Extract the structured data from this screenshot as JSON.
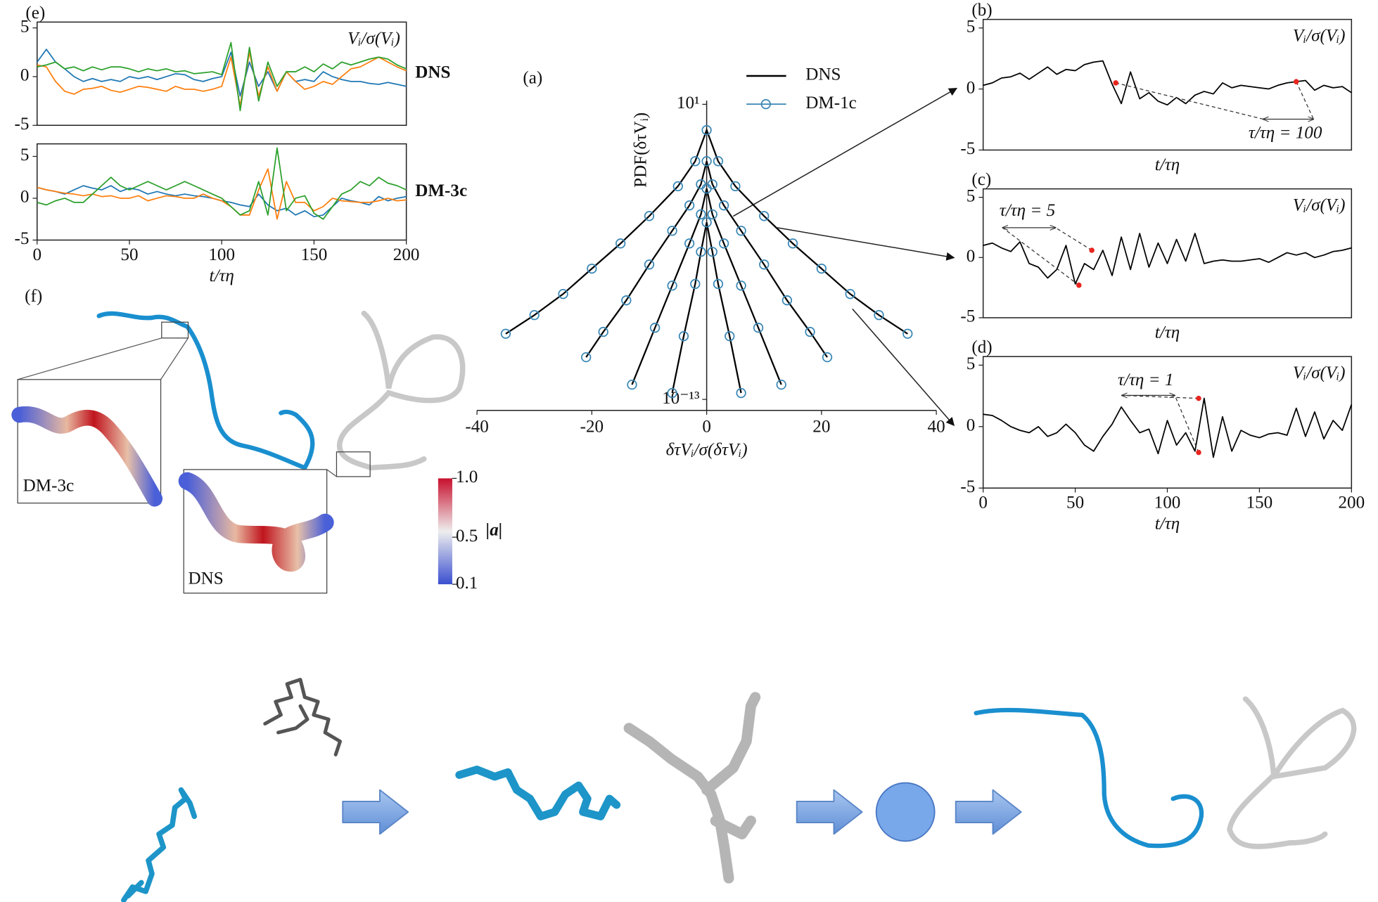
{
  "chart_data": [
    {
      "type": "line",
      "panel_label": "(e)",
      "inset_label": "Vᵢ/σ(Vᵢ)",
      "label": "DNS",
      "xlim": [
        0,
        200
      ],
      "ylim": [
        -5,
        5.6
      ],
      "yticks": [
        -5,
        0,
        5
      ],
      "x": [
        0,
        5,
        10,
        15,
        20,
        25,
        30,
        35,
        40,
        45,
        50,
        55,
        60,
        65,
        70,
        75,
        80,
        85,
        90,
        95,
        100,
        105,
        110,
        115,
        120,
        125,
        130,
        135,
        140,
        145,
        150,
        155,
        160,
        165,
        170,
        175,
        180,
        185,
        190,
        195,
        200
      ],
      "series": [
        {
          "color": "#1f77b4",
          "values": [
            1.5,
            2.8,
            1.5,
            0.8,
            0.0,
            -0.5,
            -0.2,
            -0.5,
            -0.3,
            -0.5,
            0.0,
            -0.2,
            0.0,
            -0.3,
            0.0,
            0.3,
            0.2,
            -0.3,
            -0.5,
            -0.2,
            0.0,
            2.5,
            -2.0,
            1.5,
            -1.0,
            0.5,
            -1.5,
            0.5,
            -0.5,
            -0.3,
            -0.5,
            0.5,
            0.0,
            -0.3,
            -0.5,
            -0.5,
            -0.7,
            -0.8,
            -0.6,
            -0.8,
            -1.0
          ]
        },
        {
          "color": "#ff7f0e",
          "values": [
            1.2,
            1.0,
            -0.5,
            -1.5,
            -1.8,
            -1.3,
            -1.2,
            -1.0,
            -1.4,
            -1.6,
            -1.3,
            -1.0,
            -1.1,
            -1.3,
            -1.5,
            -1.0,
            -1.3,
            -1.3,
            -1.5,
            -1.3,
            -1.0,
            2.0,
            -3.0,
            2.5,
            -2.0,
            1.0,
            -1.5,
            0.5,
            -0.5,
            -1.3,
            -1.0,
            -0.5,
            -0.8,
            0.0,
            0.8,
            1.0,
            1.5,
            2.0,
            1.5,
            1.0,
            0.6
          ]
        },
        {
          "color": "#2ca02c",
          "values": [
            1.0,
            1.2,
            1.5,
            0.8,
            1.0,
            0.6,
            1.0,
            0.7,
            1.0,
            1.0,
            0.8,
            0.5,
            0.8,
            0.6,
            0.8,
            0.5,
            0.6,
            0.3,
            0.4,
            0.5,
            0.2,
            3.5,
            -3.5,
            3.0,
            -2.5,
            1.5,
            -1.0,
            0.5,
            0.5,
            1.0,
            0.5,
            1.3,
            0.8,
            1.5,
            1.2,
            1.5,
            1.8,
            2.0,
            1.8,
            1.2,
            0.8
          ]
        }
      ]
    },
    {
      "type": "line",
      "label": "DM-3c",
      "xlabel": "t/τη",
      "xlim": [
        0,
        200
      ],
      "xticks": [
        0,
        50,
        100,
        150,
        200
      ],
      "ylim": [
        -5,
        6.5
      ],
      "yticks": [
        -5,
        0,
        5
      ],
      "x": [
        0,
        5,
        10,
        15,
        20,
        25,
        30,
        35,
        40,
        45,
        50,
        55,
        60,
        65,
        70,
        75,
        80,
        85,
        90,
        95,
        100,
        105,
        110,
        115,
        120,
        125,
        130,
        135,
        140,
        145,
        150,
        155,
        160,
        165,
        170,
        175,
        180,
        185,
        190,
        195,
        200
      ],
      "series": [
        {
          "color": "#1f77b4",
          "values": [
            1.3,
            1.0,
            0.8,
            0.5,
            1.0,
            1.5,
            1.2,
            1.0,
            1.5,
            0.8,
            1.2,
            1.0,
            0.5,
            0.8,
            0.5,
            0.3,
            0.5,
            0.3,
            0.2,
            0.0,
            -0.3,
            -0.5,
            -0.8,
            -1.0,
            0.5,
            -0.8,
            -1.5,
            -1.2,
            -2.0,
            -1.5,
            -2.2,
            -2.0,
            -1.0,
            0.0,
            -0.3,
            -0.5,
            -0.8,
            0.2,
            -0.3,
            0.0,
            0.2
          ]
        },
        {
          "color": "#ff7f0e",
          "values": [
            1.3,
            1.0,
            0.8,
            0.6,
            0.5,
            0.3,
            0.5,
            0.2,
            0.3,
            0.0,
            0.0,
            0.3,
            -0.3,
            0.0,
            0.3,
            0.2,
            0.0,
            0.0,
            0.5,
            0.0,
            -0.3,
            -1.0,
            -2.0,
            -2.0,
            1.0,
            3.5,
            -2.5,
            2.0,
            -0.5,
            -0.5,
            -1.5,
            -1.0,
            0.0,
            -0.3,
            -0.4,
            -0.5,
            -0.5,
            -0.3,
            0.0,
            -0.3,
            -0.2
          ]
        },
        {
          "color": "#2ca02c",
          "values": [
            -0.5,
            -0.8,
            -0.3,
            0.0,
            -0.5,
            -0.5,
            0.5,
            1.5,
            2.5,
            1.5,
            1.0,
            1.5,
            2.0,
            1.5,
            1.0,
            1.5,
            2.0,
            1.5,
            1.0,
            0.5,
            0.0,
            -1.0,
            -2.0,
            -1.5,
            2.0,
            -2.0,
            6.0,
            -1.5,
            0.0,
            0.3,
            -1.8,
            -2.5,
            -1.0,
            0.5,
            1.0,
            2.0,
            1.5,
            2.5,
            1.8,
            1.5,
            1.0
          ]
        }
      ]
    },
    {
      "type": "pdf",
      "panel_label": "(a)",
      "xlabel": "δτVᵢ/σ(δτVᵢ)",
      "ylabel": "PDF(δτVᵢ)",
      "xlim": [
        -40,
        40
      ],
      "xticks": [
        -40,
        -20,
        0,
        20,
        40
      ],
      "ylog": true,
      "ylim": [
        3e-14,
        15
      ],
      "yticks": [
        {
          "value": 10,
          "label": "10¹"
        },
        {
          "value": 1e-13,
          "label": "10⁻¹³"
        }
      ],
      "series": [
        {
          "name": "DNS",
          "color": "#000000",
          "style": "line",
          "curves": [
            {
              "x": [
                -35,
                -30,
                -25,
                -20,
                -15,
                -10,
                -5,
                -2,
                0,
                2,
                5,
                10,
                15,
                20,
                25,
                30,
                35
              ],
              "values": [
                1.3e-10,
                1e-09,
                1e-08,
                1.6e-07,
                2.5e-06,
                5e-05,
                0.0013,
                0.02,
                0.6,
                0.02,
                0.0013,
                5e-05,
                2.5e-06,
                1.6e-07,
                1e-08,
                1e-09,
                1.3e-10
              ]
            },
            {
              "x": [
                -21,
                -18,
                -14,
                -10,
                -6,
                -3,
                -1,
                0,
                1,
                3,
                6,
                10,
                14,
                18,
                21
              ],
              "values": [
                1e-11,
                1.6e-10,
                5e-09,
                2.5e-07,
                1e-05,
                0.00016,
                0.0016,
                0.02,
                0.0016,
                0.00016,
                1e-05,
                2.5e-07,
                5e-09,
                1.6e-10,
                1e-11
              ]
            },
            {
              "x": [
                -13,
                -9,
                -6,
                -3,
                -1,
                0,
                1,
                3,
                6,
                9,
                13
              ],
              "values": [
                5e-13,
                2.5e-10,
                2.5e-08,
                2.5e-06,
                6e-05,
                0.001,
                6e-05,
                2.5e-06,
                2.5e-08,
                2.5e-10,
                5e-13
              ]
            },
            {
              "x": [
                -6,
                -4,
                -2,
                -1,
                0,
                1,
                2,
                4,
                6
              ],
              "values": [
                2e-13,
                1e-10,
                3e-08,
                1e-06,
                2.5e-05,
                1e-06,
                3e-08,
                1e-10,
                2e-13
              ]
            }
          ]
        },
        {
          "name": "DM-1c",
          "color": "#3a87b5",
          "style": "circle",
          "curves": [
            {
              "x": [
                -35,
                -30,
                -25,
                -20,
                -15,
                -10,
                -5,
                -2,
                0,
                2,
                5,
                10,
                15,
                20,
                25,
                30,
                35
              ],
              "values": [
                1.3e-10,
                1e-09,
                1e-08,
                1.6e-07,
                2.5e-06,
                5e-05,
                0.0013,
                0.02,
                0.6,
                0.02,
                0.0013,
                5e-05,
                2.5e-06,
                1.6e-07,
                1e-08,
                1e-09,
                1.3e-10
              ]
            },
            {
              "x": [
                -21,
                -18,
                -14,
                -10,
                -6,
                -3,
                -1,
                0,
                1,
                3,
                6,
                10,
                14,
                18,
                21
              ],
              "values": [
                1e-11,
                1.6e-10,
                5e-09,
                2.5e-07,
                1e-05,
                0.00016,
                0.0016,
                0.02,
                0.0016,
                0.00016,
                1e-05,
                2.5e-07,
                5e-09,
                1.6e-10,
                1e-11
              ]
            },
            {
              "x": [
                -13,
                -9,
                -6,
                -3,
                -1,
                0,
                1,
                3,
                6,
                9,
                13
              ],
              "values": [
                5e-13,
                2.5e-10,
                2.5e-08,
                2.5e-06,
                6e-05,
                0.001,
                6e-05,
                2.5e-06,
                2.5e-08,
                2.5e-10,
                5e-13
              ]
            },
            {
              "x": [
                -6,
                -4,
                -2,
                -1,
                0,
                1,
                2,
                4,
                6
              ],
              "values": [
                2e-13,
                1e-10,
                3e-08,
                1e-06,
                2.5e-05,
                1e-06,
                3e-08,
                1e-10,
                2e-13
              ]
            }
          ]
        }
      ]
    },
    {
      "type": "line",
      "panel_label": "(b)",
      "inset_label": "Vᵢ/σ(Vᵢ)",
      "xlabel": "t/τη",
      "xlim": [
        0,
        200
      ],
      "ylim": [
        -5,
        5.7
      ],
      "yticks": [
        -5,
        0,
        5
      ],
      "x": [
        0,
        5,
        10,
        15,
        20,
        25,
        30,
        35,
        40,
        45,
        50,
        55,
        60,
        65,
        70,
        75,
        80,
        85,
        90,
        95,
        100,
        105,
        110,
        115,
        120,
        125,
        130,
        135,
        140,
        145,
        150,
        155,
        160,
        165,
        170,
        175,
        180,
        185,
        190,
        195,
        200
      ],
      "series": [
        {
          "color": "#000000",
          "values": [
            0.3,
            0.5,
            0.9,
            1.0,
            1.3,
            0.8,
            1.3,
            1.8,
            1.2,
            1.6,
            1.5,
            2.0,
            2.2,
            2.3,
            0.4,
            -1.2,
            1.4,
            -0.8,
            -0.3,
            -1.0,
            -1.3,
            -0.7,
            -1.2,
            -0.5,
            -0.2,
            -0.4,
            0.5,
            0.1,
            0.3,
            0.2,
            0.1,
            0.0,
            0.3,
            0.5,
            0.6,
            0.7,
            -0.1,
            0.3,
            0.1,
            0.2,
            -0.3
          ]
        }
      ],
      "points": {
        "color": "#e8251f",
        "x": [
          72,
          170
        ],
        "values": [
          0.5,
          0.6
        ]
      },
      "annotation": {
        "text": "τ/τη = 100"
      }
    },
    {
      "type": "line",
      "panel_label": "(c)",
      "inset_label": "Vᵢ/σ(Vᵢ)",
      "xlabel": "t/τη",
      "xlim": [
        0,
        200
      ],
      "ylim": [
        -5,
        5.7
      ],
      "yticks": [
        -5,
        0,
        5
      ],
      "x": [
        0,
        5,
        10,
        15,
        20,
        25,
        30,
        35,
        40,
        45,
        50,
        55,
        60,
        65,
        70,
        75,
        80,
        85,
        90,
        95,
        100,
        105,
        110,
        115,
        120,
        125,
        130,
        135,
        140,
        145,
        150,
        155,
        160,
        165,
        170,
        175,
        180,
        185,
        190,
        195,
        200
      ],
      "series": [
        {
          "color": "#000000",
          "values": [
            1.0,
            1.2,
            0.8,
            0.5,
            1.3,
            -0.5,
            -0.8,
            -1.7,
            -1.0,
            1.0,
            -2.2,
            -0.5,
            -1.0,
            0.6,
            -1.5,
            1.7,
            -1.0,
            2.0,
            -0.8,
            1.2,
            -0.5,
            1.5,
            -0.3,
            2.0,
            -0.5,
            -0.3,
            -0.2,
            -0.3,
            -0.3,
            -0.2,
            -0.1,
            -0.4,
            0.0,
            0.4,
            0.2,
            0.4,
            0.0,
            0.2,
            0.5,
            0.6,
            0.8
          ]
        }
      ],
      "points": {
        "color": "#e8251f",
        "x": [
          52,
          59
        ],
        "values": [
          -2.3,
          0.6
        ]
      },
      "annotation": {
        "text": "τ/τη = 5"
      }
    },
    {
      "type": "line",
      "panel_label": "(d)",
      "inset_label": "Vᵢ/σ(Vᵢ)",
      "xlabel": "t/τη",
      "xlim": [
        0,
        200
      ],
      "xticks": [
        0,
        50,
        100,
        150,
        200
      ],
      "ylim": [
        -5,
        5.7
      ],
      "yticks": [
        -5,
        0,
        5
      ],
      "x": [
        0,
        5,
        10,
        15,
        20,
        25,
        30,
        35,
        40,
        45,
        50,
        55,
        60,
        65,
        70,
        75,
        80,
        85,
        90,
        95,
        100,
        105,
        110,
        115,
        120,
        125,
        130,
        135,
        140,
        145,
        150,
        155,
        160,
        165,
        170,
        175,
        180,
        185,
        190,
        195,
        200
      ],
      "series": [
        {
          "color": "#000000",
          "values": [
            1.0,
            0.9,
            0.5,
            0.0,
            -0.3,
            -0.5,
            0.0,
            -0.8,
            -0.5,
            0.2,
            -0.5,
            -1.5,
            -2.0,
            -0.8,
            0.2,
            1.6,
            0.5,
            -0.5,
            -0.2,
            -2.2,
            0.5,
            -1.5,
            -0.5,
            -2.0,
            2.3,
            -2.5,
            0.8,
            -2.0,
            -0.3,
            -0.7,
            -0.9,
            -0.6,
            -0.5,
            -0.7,
            1.5,
            -0.8,
            1.2,
            -1.0,
            0.5,
            -0.3,
            1.8
          ]
        }
      ],
      "points": {
        "color": "#e8251f",
        "x": [
          117,
          117
        ],
        "values": [
          2.3,
          -2.1
        ]
      },
      "annotation": {
        "text": "τ/τη = 1"
      }
    },
    {
      "type": "image",
      "panel_label": "(f)",
      "insets": [
        "DM-3c",
        "DNS"
      ],
      "colorbar": {
        "label": "|a|",
        "clim": [
          0.1,
          1.0
        ],
        "ticks": [
          {
            "value": 1,
            "label": "1.0"
          },
          {
            "value": 0.5,
            "label": "0.5"
          },
          {
            "value": 0.1,
            "label": "0.1"
          }
        ]
      }
    }
  ]
}
